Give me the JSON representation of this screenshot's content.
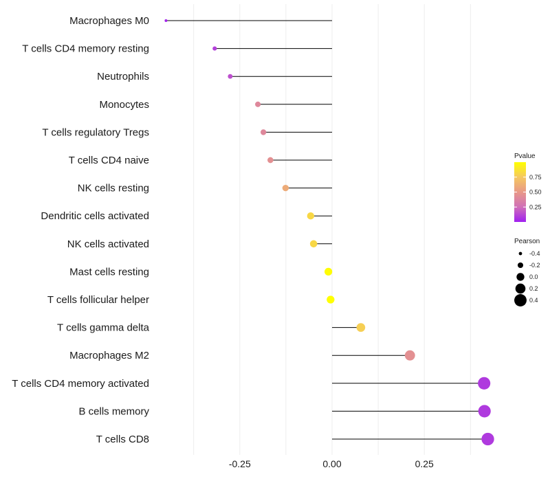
{
  "chart_data": {
    "type": "lollipop",
    "categories": [
      "Macrophages M0",
      "T cells CD4 memory resting",
      "Neutrophils",
      "Monocytes",
      "T cells regulatory  Tregs ",
      "T cells CD4 naive",
      "NK cells resting",
      "Dendritic cells activated",
      "NK cells activated",
      "Mast cells resting",
      "T cells follicular helper",
      "T cells gamma delta",
      "Macrophages M2",
      "T cells CD4 memory activated",
      "B cells memory",
      "T cells CD8"
    ],
    "values": [
      -0.45,
      -0.318,
      -0.276,
      -0.201,
      -0.186,
      -0.167,
      -0.126,
      -0.058,
      -0.05,
      -0.01,
      -0.004,
      0.078,
      0.211,
      0.412,
      0.413,
      0.422
    ],
    "pvalues": [
      0.02,
      0.1,
      0.15,
      0.4,
      0.4,
      0.45,
      0.6,
      0.82,
      0.82,
      0.99,
      1.0,
      0.78,
      0.45,
      0.08,
      0.08,
      0.08
    ],
    "xlim": [
      -0.475,
      0.475
    ],
    "xticks": [
      -0.25,
      0.0,
      0.25
    ],
    "xtick_labels": [
      "-0.25",
      "0.00",
      "0.25"
    ],
    "grid": true,
    "legend_pvalue": {
      "title": "Pvalue",
      "ticks": [
        0.25,
        0.5,
        0.75
      ],
      "tick_labels": [
        "0.25",
        "0.50",
        "0.75"
      ],
      "range": [
        0.0,
        1.0
      ],
      "colors": [
        "#a020f0",
        "#d070b8",
        "#e89888",
        "#f5c860",
        "#ffff00"
      ]
    },
    "legend_pearson": {
      "title": "Pearson",
      "values": [
        -0.4,
        -0.2,
        0.0,
        0.2,
        0.4
      ],
      "labels": [
        "-0.4",
        "-0.2",
        "0.0",
        "0.2",
        "0.4"
      ]
    }
  }
}
